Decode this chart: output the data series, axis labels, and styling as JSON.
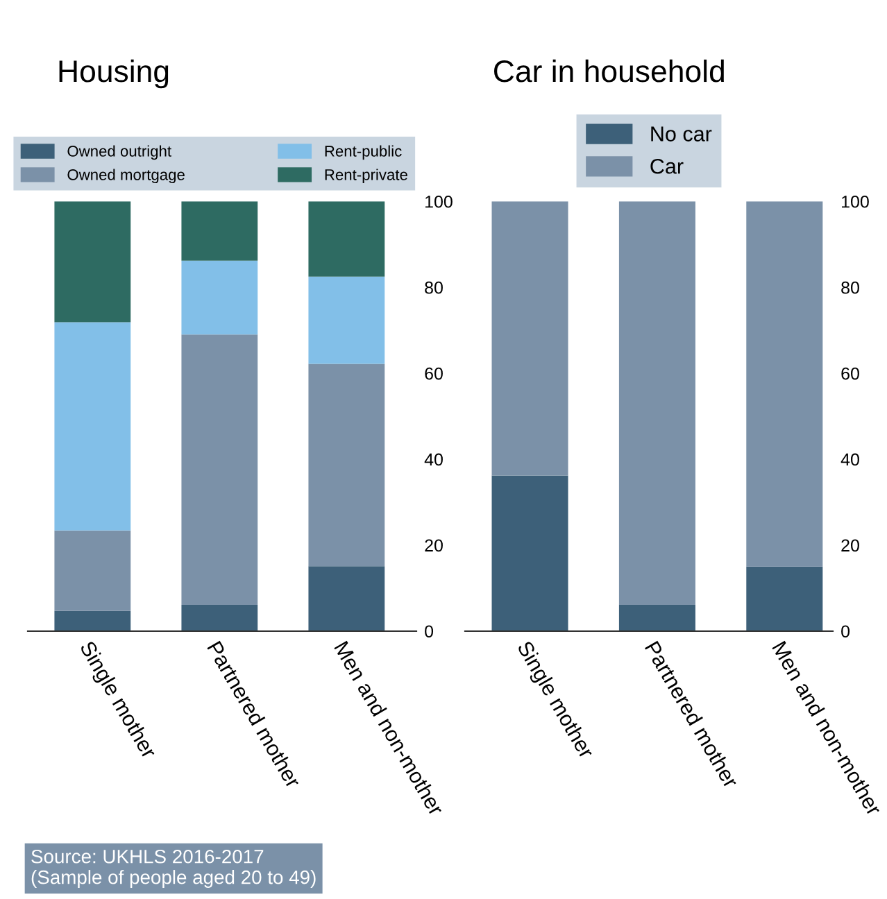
{
  "chart_data": [
    {
      "type": "bar",
      "title": "Housing",
      "stacked": true,
      "categories": [
        "Single mother",
        "Partnered mother",
        "Men and non-mother"
      ],
      "ylim": [
        0,
        100
      ],
      "yticks": [
        0,
        20,
        40,
        60,
        80,
        100
      ],
      "grid": false,
      "legend": "top",
      "series": [
        {
          "name": "Owned outright",
          "color": "#3d6079",
          "values": [
            4.7,
            6.1,
            15.1
          ]
        },
        {
          "name": "Owned mortgage",
          "color": "#7b91a8",
          "values": [
            18.7,
            62.9,
            47.1
          ]
        },
        {
          "name": "Rent-public",
          "color": "#82bfe8",
          "values": [
            48.5,
            17.2,
            20.3
          ]
        },
        {
          "name": "Rent-private",
          "color": "#2e6b62",
          "values": [
            28.1,
            13.8,
            17.5
          ]
        }
      ],
      "annotations": [
        "Source: UKHLS 2016-2017\n(Sample of people aged 20 to 49)"
      ]
    },
    {
      "type": "bar",
      "title": "Car in household",
      "stacked": true,
      "categories": [
        "Single mother",
        "Partnered mother",
        "Men and non-mother"
      ],
      "ylim": [
        0,
        100
      ],
      "yticks": [
        0,
        20,
        40,
        60,
        80,
        100
      ],
      "grid": false,
      "legend": "top",
      "series": [
        {
          "name": "No car",
          "color": "#3d6079",
          "values": [
            36.2,
            6.1,
            15.0
          ]
        },
        {
          "name": "Car",
          "color": "#7b91a8",
          "values": [
            63.8,
            93.9,
            85.0
          ]
        }
      ]
    }
  ]
}
